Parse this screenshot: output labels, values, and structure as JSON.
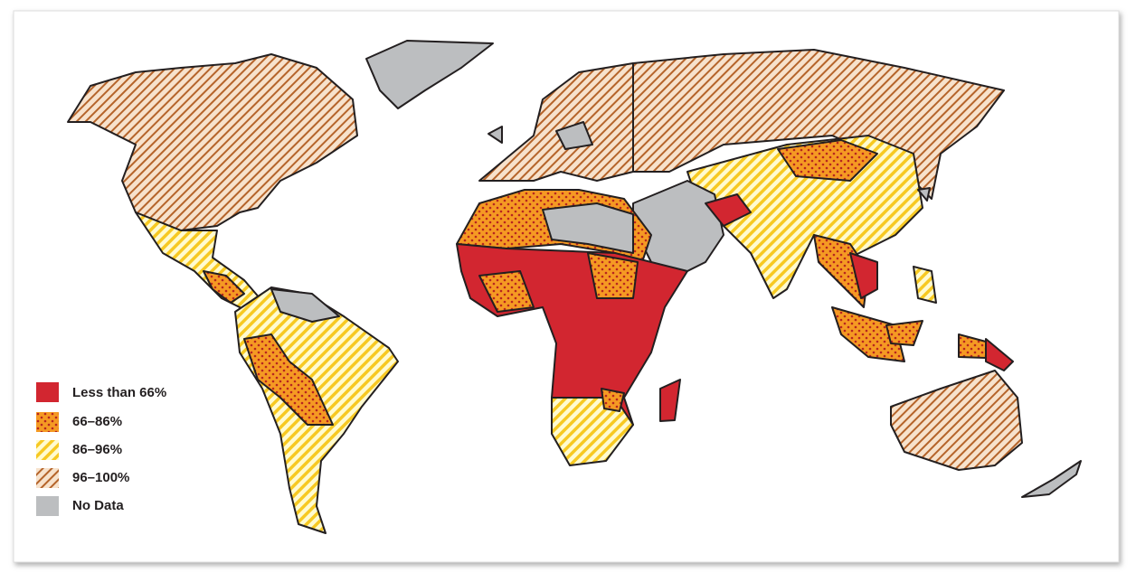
{
  "legend": {
    "items": [
      {
        "label": "Less than 66%"
      },
      {
        "label": "66–86%"
      },
      {
        "label": "86–96%"
      },
      {
        "label": "96–100%"
      },
      {
        "label": "No Data"
      }
    ]
  }
}
